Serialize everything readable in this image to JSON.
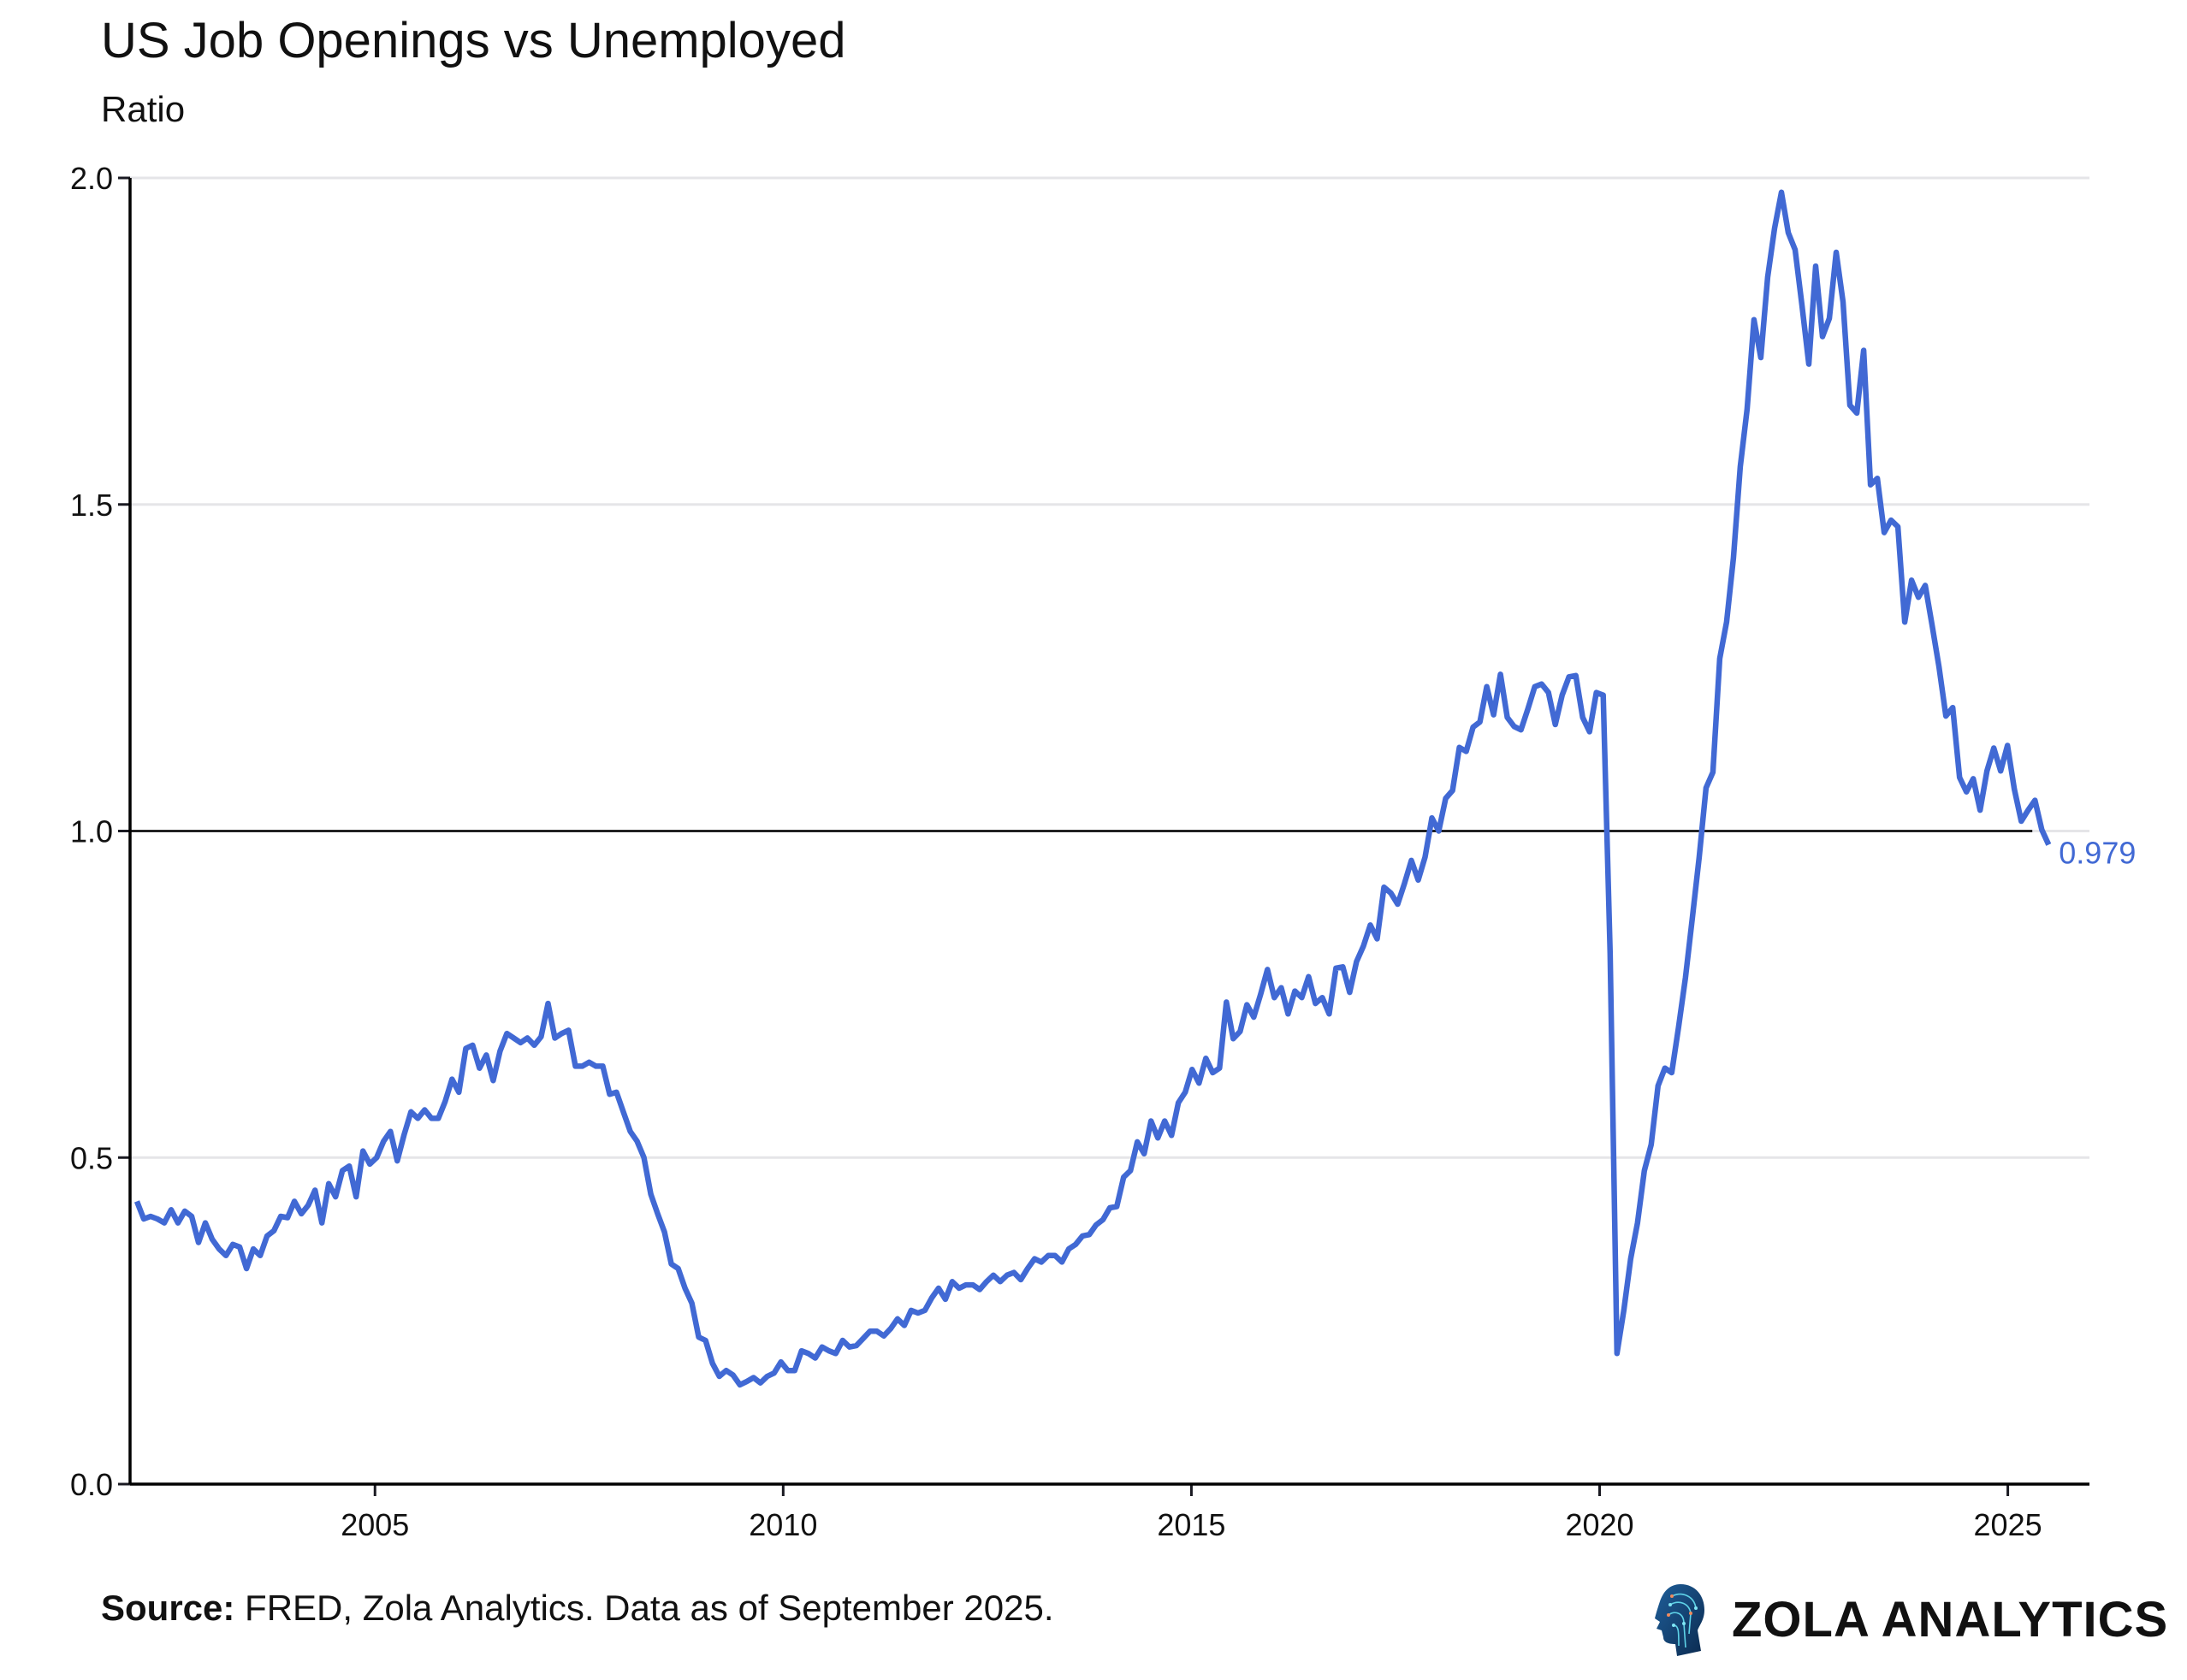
{
  "chart_data": {
    "type": "line",
    "title": "US Job Openings vs Unemployed",
    "subtitle": "Ratio",
    "xlabel": "",
    "ylabel": "",
    "ylim": [
      0,
      2.0
    ],
    "yticks": [
      "0.0",
      "0.5",
      "1.0",
      "1.5",
      "2.0"
    ],
    "xticks": [
      "2005",
      "2010",
      "2015",
      "2020",
      "2025"
    ],
    "xlim": [
      "2002-01",
      "2026-01"
    ],
    "grid": "horizontal",
    "reference_line": 1.0,
    "series": [
      {
        "color": "#4169D4",
        "frequency": "monthly",
        "start": "2002-02",
        "end": "2025-07",
        "values": [
          0.433,
          0.406,
          0.41,
          0.406,
          0.4,
          0.42,
          0.4,
          0.418,
          0.41,
          0.37,
          0.4,
          0.375,
          0.36,
          0.35,
          0.367,
          0.363,
          0.33,
          0.36,
          0.35,
          0.38,
          0.388,
          0.41,
          0.408,
          0.433,
          0.414,
          0.427,
          0.45,
          0.4,
          0.46,
          0.44,
          0.48,
          0.487,
          0.44,
          0.51,
          0.49,
          0.5,
          0.525,
          0.54,
          0.495,
          0.535,
          0.57,
          0.56,
          0.573,
          0.56,
          0.56,
          0.586,
          0.62,
          0.6,
          0.667,
          0.672,
          0.637,
          0.657,
          0.618,
          0.663,
          0.69,
          0.683,
          0.676,
          0.683,
          0.672,
          0.685,
          0.736,
          0.683,
          0.69,
          0.695,
          0.64,
          0.64,
          0.646,
          0.64,
          0.64,
          0.597,
          0.6,
          0.57,
          0.54,
          0.525,
          0.5,
          0.444,
          0.414,
          0.386,
          0.337,
          0.33,
          0.3,
          0.277,
          0.225,
          0.22,
          0.185,
          0.165,
          0.174,
          0.167,
          0.152,
          0.157,
          0.163,
          0.155,
          0.165,
          0.17,
          0.187,
          0.174,
          0.174,
          0.204,
          0.2,
          0.193,
          0.21,
          0.204,
          0.2,
          0.22,
          0.21,
          0.212,
          0.223,
          0.234,
          0.234,
          0.227,
          0.238,
          0.253,
          0.243,
          0.266,
          0.262,
          0.266,
          0.285,
          0.3,
          0.283,
          0.31,
          0.3,
          0.305,
          0.305,
          0.298,
          0.31,
          0.32,
          0.31,
          0.32,
          0.324,
          0.313,
          0.33,
          0.345,
          0.34,
          0.35,
          0.35,
          0.34,
          0.36,
          0.367,
          0.38,
          0.382,
          0.397,
          0.405,
          0.423,
          0.425,
          0.47,
          0.48,
          0.524,
          0.506,
          0.556,
          0.53,
          0.556,
          0.534,
          0.584,
          0.6,
          0.635,
          0.614,
          0.652,
          0.63,
          0.637,
          0.738,
          0.682,
          0.693,
          0.734,
          0.715,
          0.75,
          0.788,
          0.745,
          0.76,
          0.72,
          0.755,
          0.745,
          0.777,
          0.736,
          0.745,
          0.72,
          0.79,
          0.792,
          0.753,
          0.8,
          0.824,
          0.856,
          0.835,
          0.914,
          0.905,
          0.888,
          0.92,
          0.955,
          0.925,
          0.96,
          1.02,
          1.0,
          1.05,
          1.062,
          1.128,
          1.122,
          1.159,
          1.167,
          1.221,
          1.178,
          1.24,
          1.174,
          1.16,
          1.155,
          1.187,
          1.221,
          1.225,
          1.212,
          1.163,
          1.208,
          1.236,
          1.238,
          1.174,
          1.152,
          1.212,
          1.208,
          0.813,
          0.2,
          0.266,
          0.345,
          0.4,
          0.48,
          0.52,
          0.61,
          0.637,
          0.63,
          0.7,
          0.775,
          0.867,
          0.96,
          1.066,
          1.09,
          1.264,
          1.32,
          1.418,
          1.558,
          1.646,
          1.783,
          1.725,
          1.848,
          1.923,
          1.978,
          1.916,
          1.89,
          1.805,
          1.715,
          1.865,
          1.757,
          1.785,
          1.886,
          1.81,
          1.652,
          1.64,
          1.736,
          1.53,
          1.54,
          1.457,
          1.476,
          1.466,
          1.32,
          1.384,
          1.358,
          1.376,
          1.315,
          1.251,
          1.176,
          1.189,
          1.082,
          1.06,
          1.08,
          1.032,
          1.092,
          1.127,
          1.092,
          1.131,
          1.064,
          1.015,
          1.032,
          1.047,
          1.002,
          0.979
        ]
      }
    ],
    "end_label": "0.979",
    "end_label_color": "#4169D4"
  },
  "footer": {
    "source_label": "Source:",
    "source_text": " FRED, Zola Analytics. Data as of September 2025.",
    "brand": "ZOLA ANALYTICS",
    "brand_icon": "head-circuit-icon"
  }
}
